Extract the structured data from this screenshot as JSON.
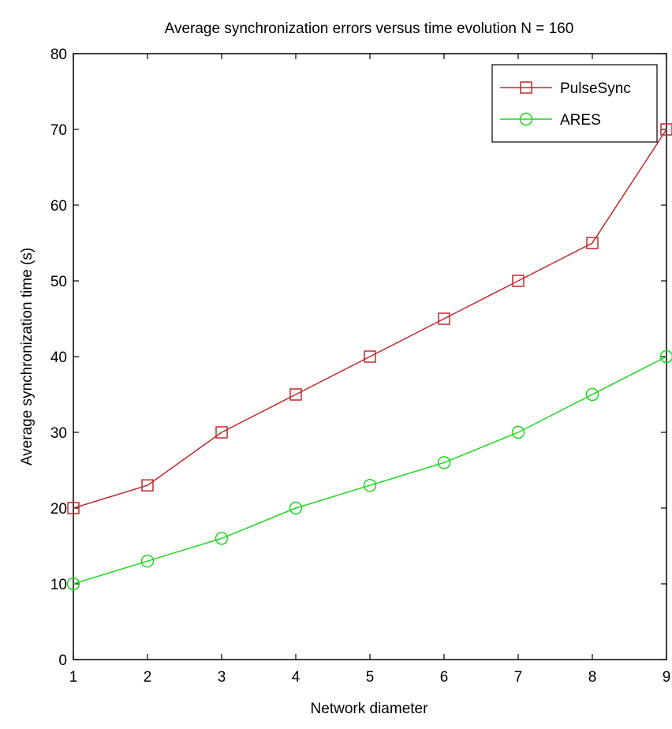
{
  "chart_data": {
    "type": "line",
    "title": "Average synchronization errors versus time evolution N = 160",
    "xlabel": "Network diameter",
    "ylabel": "Average synchronization time (s)",
    "x": [
      1,
      2,
      3,
      4,
      5,
      6,
      7,
      8,
      9
    ],
    "xlim": [
      1,
      9
    ],
    "ylim": [
      0,
      80
    ],
    "xticks": [
      "1",
      "2",
      "3",
      "4",
      "5",
      "6",
      "7",
      "8",
      "9"
    ],
    "yticks": [
      "0",
      "10",
      "20",
      "30",
      "40",
      "50",
      "60",
      "70",
      "80"
    ],
    "grid": false,
    "legend_position": "top-right",
    "series": [
      {
        "name": "PulseSync",
        "color": "#c0282a",
        "marker": "square",
        "values": [
          20,
          23,
          30,
          35,
          40,
          45,
          50,
          55,
          70
        ]
      },
      {
        "name": "ARES",
        "color": "#1fd61f",
        "marker": "circle",
        "values": [
          10,
          13,
          16,
          20,
          23,
          26,
          30,
          35,
          40
        ]
      }
    ]
  }
}
